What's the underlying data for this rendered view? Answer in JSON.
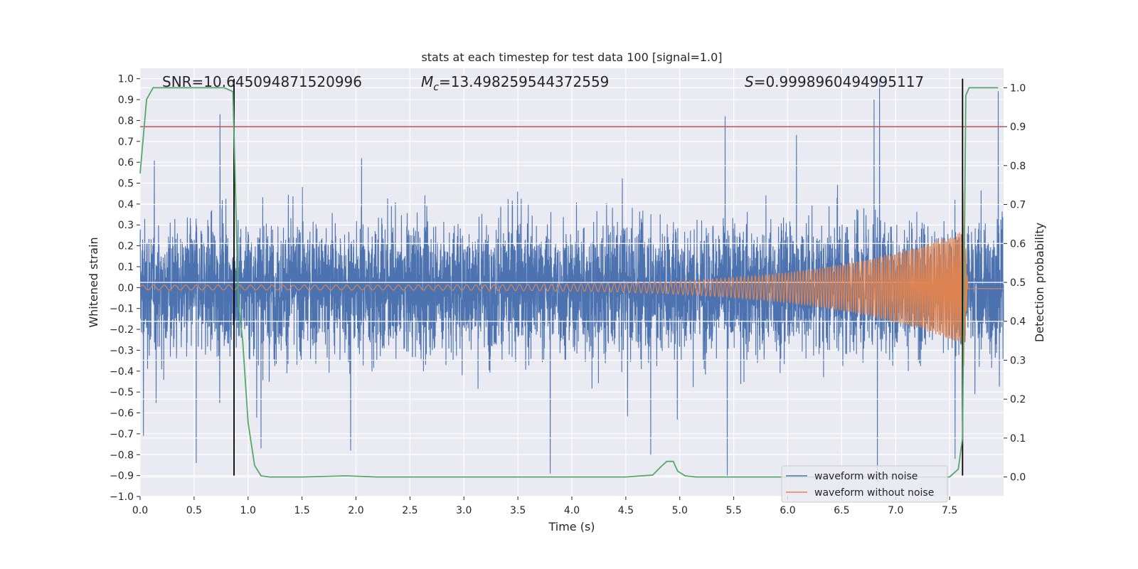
{
  "chart_data": {
    "type": "line",
    "title": "stats at each timestep for test data 100 [signal=1.0]",
    "xlabel": "Time (s)",
    "ylabel": "Whitened strain",
    "y2label": "Detection probability",
    "xlim": [
      0,
      8
    ],
    "ylim": [
      -1.0,
      1.05
    ],
    "y2lim": [
      -0.05,
      1.05
    ],
    "grid": true,
    "legend_position": "bottom-right",
    "x_ticks": [
      0.0,
      0.5,
      1.0,
      1.5,
      2.0,
      2.5,
      3.0,
      3.5,
      4.0,
      4.5,
      5.0,
      5.5,
      6.0,
      6.5,
      7.0,
      7.5
    ],
    "x_tick_labels": [
      "0.0",
      "0.5",
      "1.0",
      "1.5",
      "2.0",
      "2.5",
      "3.0",
      "3.5",
      "4.0",
      "4.5",
      "5.0",
      "5.5",
      "6.0",
      "6.5",
      "7.0",
      "7.5"
    ],
    "y_ticks": [
      -1.0,
      -0.9,
      -0.8,
      -0.7,
      -0.6,
      -0.5,
      -0.4,
      -0.3,
      -0.2,
      -0.1,
      0.0,
      0.1,
      0.2,
      0.3,
      0.4,
      0.5,
      0.6,
      0.7,
      0.8,
      0.9,
      1.0
    ],
    "y_tick_labels": [
      "−1.0",
      "−0.9",
      "−0.8",
      "−0.7",
      "−0.6",
      "−0.5",
      "−0.4",
      "−0.3",
      "−0.2",
      "−0.1",
      "0.0",
      "0.1",
      "0.2",
      "0.3",
      "0.4",
      "0.5",
      "0.6",
      "0.7",
      "0.8",
      "0.9",
      "1.0"
    ],
    "y2_ticks": [
      0.0,
      0.1,
      0.2,
      0.3,
      0.4,
      0.5,
      0.6,
      0.7,
      0.8,
      0.9,
      1.0
    ],
    "y2_tick_labels": [
      "0.0",
      "0.1",
      "0.2",
      "0.3",
      "0.4",
      "0.5",
      "0.6",
      "0.7",
      "0.8",
      "0.9",
      "1.0"
    ],
    "annotations": {
      "snr": "SNR=10.645094871520996",
      "mc_symbol": "M",
      "mc_sub": "c",
      "mc_value": "=13.498259544372559",
      "s_symbol": "S",
      "s_value": "=0.9998960494995117"
    },
    "series": [
      {
        "name": "waveform with noise",
        "color": "#4c72b0",
        "noise_sigma": 0.16,
        "t_range": [
          0,
          8
        ],
        "spike_peaks": [
          {
            "t": 0.52,
            "v": -0.84
          },
          {
            "t": 0.74,
            "v": 0.83
          },
          {
            "t": 3.8,
            "v": -0.89
          },
          {
            "t": 5.42,
            "v": 0.82
          },
          {
            "t": 5.44,
            "v": -0.9
          },
          {
            "t": 6.8,
            "v": 0.9
          },
          {
            "t": 6.85,
            "v": 1.0
          },
          {
            "t": 6.83,
            "v": -0.93
          },
          {
            "t": 7.55,
            "v": -0.82
          },
          {
            "t": 7.95,
            "v": 0.94
          },
          {
            "t": 0.03,
            "v": -0.71
          },
          {
            "t": 1.12,
            "v": -0.77
          },
          {
            "t": 1.95,
            "v": -0.78
          },
          {
            "t": 4.73,
            "v": -0.8
          }
        ]
      },
      {
        "name": "waveform without noise",
        "color": "#dd8452",
        "amplitude_start": 0.012,
        "amplitude_peak": 0.27,
        "merger_time": 7.62,
        "f_start": 10,
        "f_peak": 75,
        "post_merger_value": -0.005
      },
      {
        "name": "detection probability",
        "axis": "right",
        "color": "#55a868",
        "t": [
          0.0,
          0.06,
          0.12,
          0.2,
          0.5,
          0.78,
          0.86,
          0.91,
          0.95,
          1.0,
          1.06,
          1.12,
          1.2,
          1.5,
          1.9,
          2.2,
          4.5,
          4.75,
          4.82,
          4.88,
          4.94,
          4.98,
          5.05,
          5.15,
          7.5,
          7.58,
          7.62,
          7.65,
          7.68,
          7.74,
          7.8,
          7.85,
          7.95
        ],
        "values": [
          0.78,
          0.97,
          1.0,
          1.0,
          1.0,
          1.0,
          0.99,
          0.45,
          0.35,
          0.14,
          0.03,
          0.003,
          0.0,
          0.0,
          0.003,
          0.0,
          0.0,
          0.005,
          0.025,
          0.04,
          0.04,
          0.015,
          0.003,
          0.0,
          0.0,
          0.02,
          0.1,
          0.98,
          1.0,
          1.0,
          1.0,
          1.0,
          1.0
        ]
      }
    ],
    "threshold_line": {
      "value": 0.9,
      "axis": "right",
      "color": "#c44e52"
    },
    "vertical_lines": [
      {
        "t": 0.87,
        "y_from": -0.9,
        "y_to": 1.0,
        "color": "#000000"
      },
      {
        "t": 7.62,
        "y_from": -0.9,
        "y_to": 1.0,
        "color": "#000000"
      }
    ]
  },
  "legend": {
    "items": [
      {
        "label": "waveform with noise",
        "color": "#4c72b0"
      },
      {
        "label": "waveform without noise",
        "color": "#dd8452"
      }
    ]
  }
}
